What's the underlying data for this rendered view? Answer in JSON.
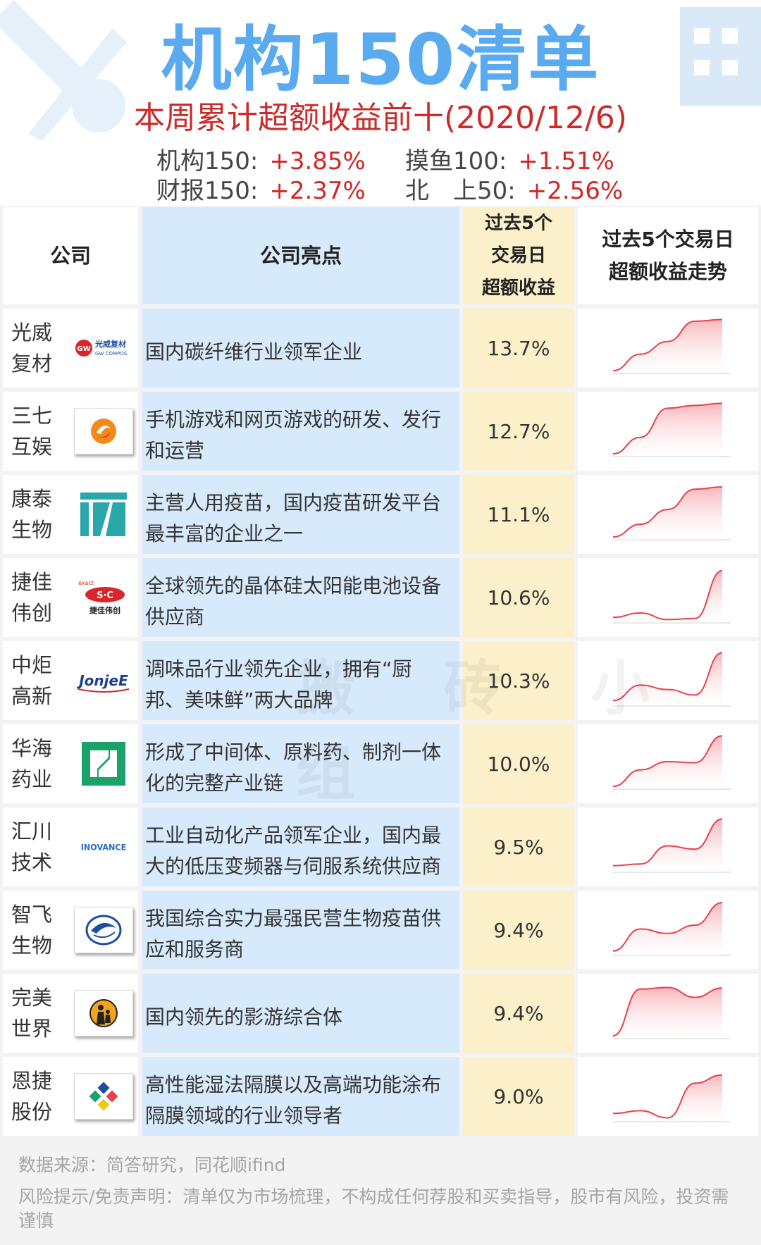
{
  "header": {
    "title": "机构150清单",
    "subtitle": "本周累计超额收益前十(2020/12/6)",
    "indices": [
      {
        "label": "机构150:",
        "value": "+3.85%"
      },
      {
        "label": "摸鱼100:",
        "value": "+1.51%"
      },
      {
        "label": "财报150:",
        "value": "+2.37%"
      },
      {
        "label": "北　上50:",
        "value": "+2.56%"
      }
    ]
  },
  "table": {
    "headers": {
      "company": "公司",
      "highlight": "公司亮点",
      "return_l1": "过去5个",
      "return_l2": "交易日",
      "return_l3": "超额收益",
      "trend_l1": "过去5个交易日",
      "trend_l2": "超额收益走势"
    },
    "rows": [
      {
        "name1": "光威",
        "name2": "复材",
        "logo": "gw-logo",
        "logo_text": "光威复材",
        "logo_sub": "GW COMPOS",
        "highlight": "国内碳纤维行业领军企业",
        "ret": "13.7%",
        "trend": [
          0.05,
          0.35,
          0.58,
          0.95,
          0.98
        ]
      },
      {
        "name1": "三七",
        "name2": "互娱",
        "logo": "37-logo",
        "highlight": "手机游戏和网页游戏的研发、发行和运营",
        "ret": "12.7%",
        "trend": [
          0.05,
          0.35,
          0.88,
          0.93,
          0.97
        ]
      },
      {
        "name1": "康泰",
        "name2": "生物",
        "logo": "kt-logo",
        "highlight": "主营人用疫苗，国内疫苗研发平台最丰富的企业之一",
        "ret": "11.1%",
        "trend": [
          0.05,
          0.28,
          0.55,
          0.92,
          0.96
        ]
      },
      {
        "name1": "捷佳",
        "name2": "伟创",
        "logo": "sc-logo",
        "logo_text": "S·C",
        "logo_sub": "捷佳伟创",
        "highlight": "全球领先的晶体硅太阳能电池设备供应商",
        "ret": "10.6%",
        "trend": [
          0.1,
          0.18,
          0.06,
          0.08,
          0.95
        ]
      },
      {
        "name1": "中炬",
        "name2": "高新",
        "logo": "jonjee-logo",
        "logo_text": "JonjeE",
        "highlight": "调味品行业领先企业，拥有“厨邦、美味鲜”两大品牌",
        "ret": "10.3%",
        "trend": [
          0.1,
          0.38,
          0.3,
          0.2,
          0.97
        ]
      },
      {
        "name1": "华海",
        "name2": "药业",
        "logo": "hh-logo",
        "highlight": "形成了中间体、原料药、制剂一体化的完整产业链",
        "ret": "10.0%",
        "trend": [
          0.05,
          0.35,
          0.5,
          0.48,
          0.97
        ]
      },
      {
        "name1": "汇川",
        "name2": "技术",
        "logo": "inovance-logo",
        "logo_text": "INOVANCE",
        "highlight": "工业自动化产品领军企业，国内最大的低压变频器与伺服系统供应商",
        "ret": "9.5%",
        "trend": [
          0.12,
          0.15,
          0.48,
          0.42,
          0.97
        ]
      },
      {
        "name1": "智飞",
        "name2": "生物",
        "logo": "zf-logo",
        "highlight": "我国综合实力最强民营生物疫苗供应和服务商",
        "ret": "9.4%",
        "trend": [
          0.08,
          0.48,
          0.4,
          0.55,
          0.96
        ]
      },
      {
        "name1": "完美",
        "name2": "世界",
        "logo": "wm-logo",
        "highlight": "国内领先的影游综合体",
        "ret": "9.4%",
        "trend": [
          0.05,
          0.9,
          0.93,
          0.75,
          0.92
        ]
      },
      {
        "name1": "恩捷",
        "name2": "股份",
        "logo": "ej-logo",
        "highlight": "高性能湿法隔膜以及高端功能涂布隔膜领域的行业领导者",
        "ret": "9.0%",
        "trend": [
          0.15,
          0.2,
          0.07,
          0.7,
          0.85
        ]
      }
    ]
  },
  "watermark": "搬 砖 小 组",
  "footer": {
    "source": "数据来源：简答研究，同花顺ifind",
    "risk": "风险提示/免责声明：清单仅为市场梳理，不构成任何荐股和买卖指导，股市有风险，投资需谨慎"
  },
  "colors": {
    "title": "#5aaaf0",
    "positive": "#d02828",
    "highlight_bg": "#d7eafb",
    "return_bg": "#fbf0c9",
    "trend_line_up": "#e8414b",
    "trend_fill": "#f7b3b8",
    "trend_line_down": "#2c6fb5"
  }
}
